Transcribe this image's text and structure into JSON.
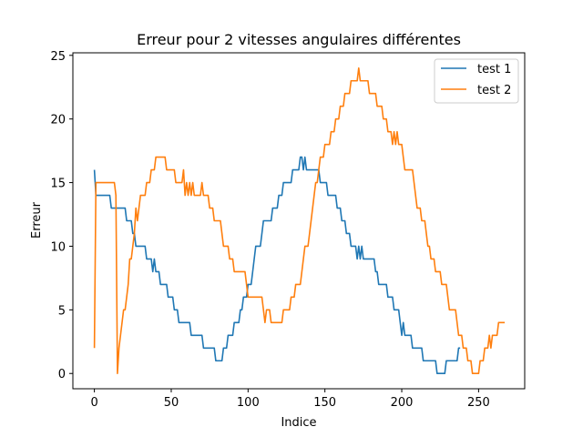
{
  "chart_data": {
    "type": "line",
    "title": "Erreur pour 2 vitesses angulaires différentes",
    "xlabel": "Indice",
    "ylabel": "Erreur",
    "xlim": [
      -14,
      280
    ],
    "ylim": [
      -1.2,
      25.2
    ],
    "xticks": [
      0,
      50,
      100,
      150,
      200,
      250
    ],
    "yticks": [
      0,
      5,
      10,
      15,
      20,
      25
    ],
    "grid": false,
    "legend_position": "top-right",
    "series": [
      {
        "name": "test 1",
        "color": "#1f77b4",
        "points": [
          [
            0,
            16
          ],
          [
            1,
            14
          ],
          [
            10,
            14
          ],
          [
            11,
            13
          ],
          [
            20,
            13
          ],
          [
            21,
            12
          ],
          [
            24,
            12
          ],
          [
            25,
            11
          ],
          [
            26,
            11
          ],
          [
            27,
            10
          ],
          [
            33,
            10
          ],
          [
            34,
            9
          ],
          [
            37,
            9
          ],
          [
            38,
            8
          ],
          [
            39,
            9
          ],
          [
            40,
            8
          ],
          [
            42,
            8
          ],
          [
            43,
            7
          ],
          [
            47,
            7
          ],
          [
            48,
            6
          ],
          [
            51,
            6
          ],
          [
            52,
            5
          ],
          [
            54,
            5
          ],
          [
            55,
            4
          ],
          [
            62,
            4
          ],
          [
            63,
            3
          ],
          [
            70,
            3
          ],
          [
            71,
            2
          ],
          [
            78,
            2
          ],
          [
            79,
            1
          ],
          [
            83,
            1
          ],
          [
            84,
            2
          ],
          [
            86,
            2
          ],
          [
            87,
            3
          ],
          [
            90,
            3
          ],
          [
            91,
            4
          ],
          [
            94,
            4
          ],
          [
            95,
            5
          ],
          [
            96,
            5
          ],
          [
            97,
            6
          ],
          [
            99,
            6
          ],
          [
            100,
            7
          ],
          [
            102,
            7
          ],
          [
            103,
            8
          ],
          [
            104,
            9
          ],
          [
            105,
            10
          ],
          [
            108,
            10
          ],
          [
            109,
            11
          ],
          [
            110,
            12
          ],
          [
            115,
            12
          ],
          [
            116,
            13
          ],
          [
            119,
            13
          ],
          [
            120,
            14
          ],
          [
            122,
            14
          ],
          [
            123,
            15
          ],
          [
            128,
            15
          ],
          [
            129,
            16
          ],
          [
            133,
            16
          ],
          [
            134,
            17
          ],
          [
            135,
            17
          ],
          [
            136,
            16
          ],
          [
            137,
            17
          ],
          [
            138,
            16
          ],
          [
            146,
            16
          ],
          [
            147,
            15
          ],
          [
            151,
            15
          ],
          [
            152,
            14
          ],
          [
            157,
            14
          ],
          [
            158,
            13
          ],
          [
            160,
            13
          ],
          [
            161,
            12
          ],
          [
            163,
            12
          ],
          [
            164,
            11
          ],
          [
            166,
            11
          ],
          [
            167,
            10
          ],
          [
            170,
            10
          ],
          [
            171,
            9
          ],
          [
            172,
            10
          ],
          [
            173,
            9
          ],
          [
            174,
            10
          ],
          [
            175,
            9
          ],
          [
            182,
            9
          ],
          [
            183,
            8
          ],
          [
            184,
            8
          ],
          [
            185,
            7
          ],
          [
            190,
            7
          ],
          [
            191,
            6
          ],
          [
            194,
            6
          ],
          [
            195,
            5
          ],
          [
            198,
            5
          ],
          [
            199,
            4
          ],
          [
            200,
            3
          ],
          [
            201,
            4
          ],
          [
            202,
            3
          ],
          [
            206,
            3
          ],
          [
            207,
            2
          ],
          [
            213,
            2
          ],
          [
            214,
            1
          ],
          [
            222,
            1
          ],
          [
            223,
            0
          ],
          [
            228,
            0
          ],
          [
            229,
            1
          ],
          [
            236,
            1
          ],
          [
            237,
            2
          ],
          [
            238,
            2
          ]
        ]
      },
      {
        "name": "test 2",
        "color": "#ff7f0e",
        "points": [
          [
            0,
            2
          ],
          [
            1,
            15
          ],
          [
            13,
            15
          ],
          [
            14,
            14
          ],
          [
            15,
            0
          ],
          [
            16,
            2
          ],
          [
            17,
            3
          ],
          [
            18,
            4
          ],
          [
            19,
            5
          ],
          [
            20,
            5
          ],
          [
            21,
            6
          ],
          [
            22,
            7
          ],
          [
            23,
            9
          ],
          [
            24,
            9
          ],
          [
            25,
            10
          ],
          [
            26,
            11
          ],
          [
            27,
            13
          ],
          [
            28,
            12
          ],
          [
            29,
            13
          ],
          [
            30,
            14
          ],
          [
            33,
            14
          ],
          [
            34,
            15
          ],
          [
            36,
            15
          ],
          [
            37,
            16
          ],
          [
            39,
            16
          ],
          [
            40,
            17
          ],
          [
            46,
            17
          ],
          [
            47,
            16
          ],
          [
            52,
            16
          ],
          [
            53,
            15
          ],
          [
            57,
            15
          ],
          [
            58,
            16
          ],
          [
            59,
            14
          ],
          [
            60,
            15
          ],
          [
            61,
            14
          ],
          [
            62,
            15
          ],
          [
            63,
            14
          ],
          [
            64,
            15
          ],
          [
            65,
            14
          ],
          [
            69,
            14
          ],
          [
            70,
            15
          ],
          [
            71,
            14
          ],
          [
            74,
            14
          ],
          [
            75,
            13
          ],
          [
            77,
            13
          ],
          [
            78,
            12
          ],
          [
            82,
            12
          ],
          [
            83,
            11
          ],
          [
            84,
            10
          ],
          [
            87,
            10
          ],
          [
            88,
            9
          ],
          [
            90,
            9
          ],
          [
            91,
            8
          ],
          [
            98,
            8
          ],
          [
            99,
            7
          ],
          [
            100,
            6
          ],
          [
            109,
            6
          ],
          [
            110,
            5
          ],
          [
            111,
            4
          ],
          [
            112,
            5
          ],
          [
            114,
            5
          ],
          [
            115,
            4
          ],
          [
            122,
            4
          ],
          [
            123,
            5
          ],
          [
            127,
            5
          ],
          [
            128,
            6
          ],
          [
            130,
            6
          ],
          [
            131,
            7
          ],
          [
            134,
            7
          ],
          [
            135,
            8
          ],
          [
            136,
            9
          ],
          [
            137,
            10
          ],
          [
            139,
            10
          ],
          [
            140,
            11
          ],
          [
            141,
            12
          ],
          [
            142,
            13
          ],
          [
            143,
            14
          ],
          [
            144,
            15
          ],
          [
            145,
            15
          ],
          [
            146,
            16
          ],
          [
            147,
            17
          ],
          [
            149,
            17
          ],
          [
            150,
            18
          ],
          [
            153,
            18
          ],
          [
            154,
            19
          ],
          [
            156,
            19
          ],
          [
            157,
            20
          ],
          [
            159,
            20
          ],
          [
            160,
            21
          ],
          [
            162,
            21
          ],
          [
            163,
            22
          ],
          [
            166,
            22
          ],
          [
            167,
            23
          ],
          [
            171,
            23
          ],
          [
            172,
            24
          ],
          [
            173,
            23
          ],
          [
            178,
            23
          ],
          [
            179,
            22
          ],
          [
            183,
            22
          ],
          [
            184,
            21
          ],
          [
            187,
            21
          ],
          [
            188,
            20
          ],
          [
            190,
            20
          ],
          [
            191,
            19
          ],
          [
            193,
            19
          ],
          [
            194,
            18
          ],
          [
            195,
            19
          ],
          [
            196,
            18
          ],
          [
            197,
            19
          ],
          [
            198,
            18
          ],
          [
            200,
            18
          ],
          [
            201,
            17
          ],
          [
            202,
            16
          ],
          [
            207,
            16
          ],
          [
            208,
            15
          ],
          [
            209,
            14
          ],
          [
            210,
            13
          ],
          [
            212,
            13
          ],
          [
            213,
            12
          ],
          [
            215,
            12
          ],
          [
            216,
            11
          ],
          [
            217,
            10
          ],
          [
            218,
            10
          ],
          [
            219,
            9
          ],
          [
            221,
            9
          ],
          [
            222,
            8
          ],
          [
            225,
            8
          ],
          [
            226,
            7
          ],
          [
            229,
            7
          ],
          [
            230,
            6
          ],
          [
            231,
            5
          ],
          [
            235,
            5
          ],
          [
            236,
            4
          ],
          [
            237,
            3
          ],
          [
            239,
            3
          ],
          [
            240,
            2
          ],
          [
            242,
            2
          ],
          [
            243,
            1
          ],
          [
            245,
            1
          ],
          [
            246,
            0
          ],
          [
            250,
            0
          ],
          [
            251,
            1
          ],
          [
            253,
            1
          ],
          [
            254,
            2
          ],
          [
            256,
            2
          ],
          [
            257,
            3
          ],
          [
            258,
            2
          ],
          [
            259,
            3
          ],
          [
            262,
            3
          ],
          [
            263,
            4
          ],
          [
            266,
            4
          ],
          [
            267,
            4
          ]
        ]
      }
    ]
  }
}
